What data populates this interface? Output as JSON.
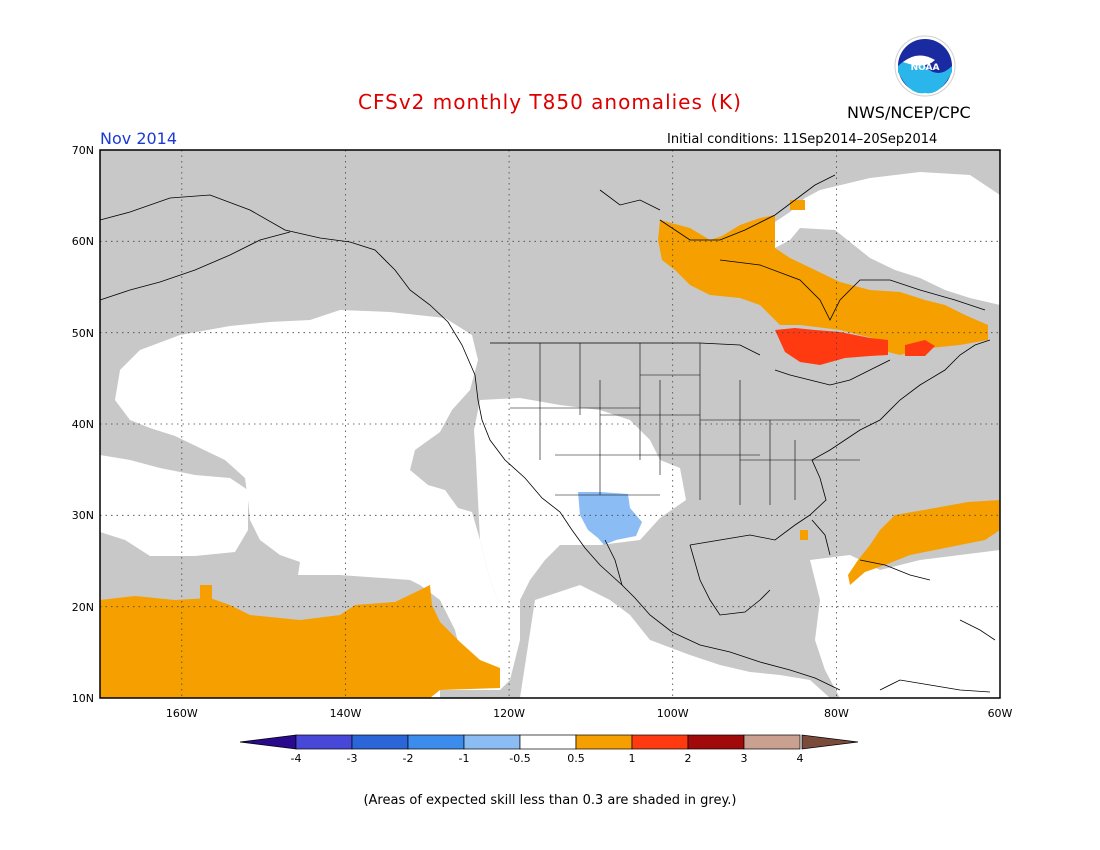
{
  "title": "CFSv2 monthly T850 anomalies (K)",
  "organization": "NWS/NCEP/CPC",
  "logo_text": "NOAA",
  "valid_month": "Nov 2014",
  "initial_conditions": "Initial conditions: 11Sep2014–20Sep2014",
  "footer_note": "(Areas of expected skill less than 0.3 are shaded in grey.)",
  "map": {
    "lat_labels": [
      "70N",
      "60N",
      "50N",
      "40N",
      "30N",
      "20N",
      "10N"
    ],
    "lon_labels": [
      "160W",
      "140W",
      "120W",
      "100W",
      "80W",
      "60W"
    ],
    "lon_range": [
      -170,
      -60
    ],
    "lat_range": [
      10,
      70
    ]
  },
  "colorbar": {
    "labels": [
      "-4",
      "-3",
      "-2",
      "-1",
      "-0.5",
      "0.5",
      "1",
      "2",
      "3",
      "4"
    ],
    "colors": [
      "#2a0a8c",
      "#4848d8",
      "#2a66d8",
      "#3c8cee",
      "#8cbcf4",
      "#ffffff",
      "#f5a000",
      "#ff3a10",
      "#a00a0a",
      "#caa090",
      "#7a4a3a"
    ]
  },
  "colors": {
    "low_skill_grey": "#c8c8c8",
    "positive_anomaly": "#f5a000",
    "strong_positive_anomaly": "#ff3a10",
    "negative_anomaly": "#8cbcf4",
    "title_red": "#dd0000",
    "month_blue": "#1a3ad8"
  }
}
